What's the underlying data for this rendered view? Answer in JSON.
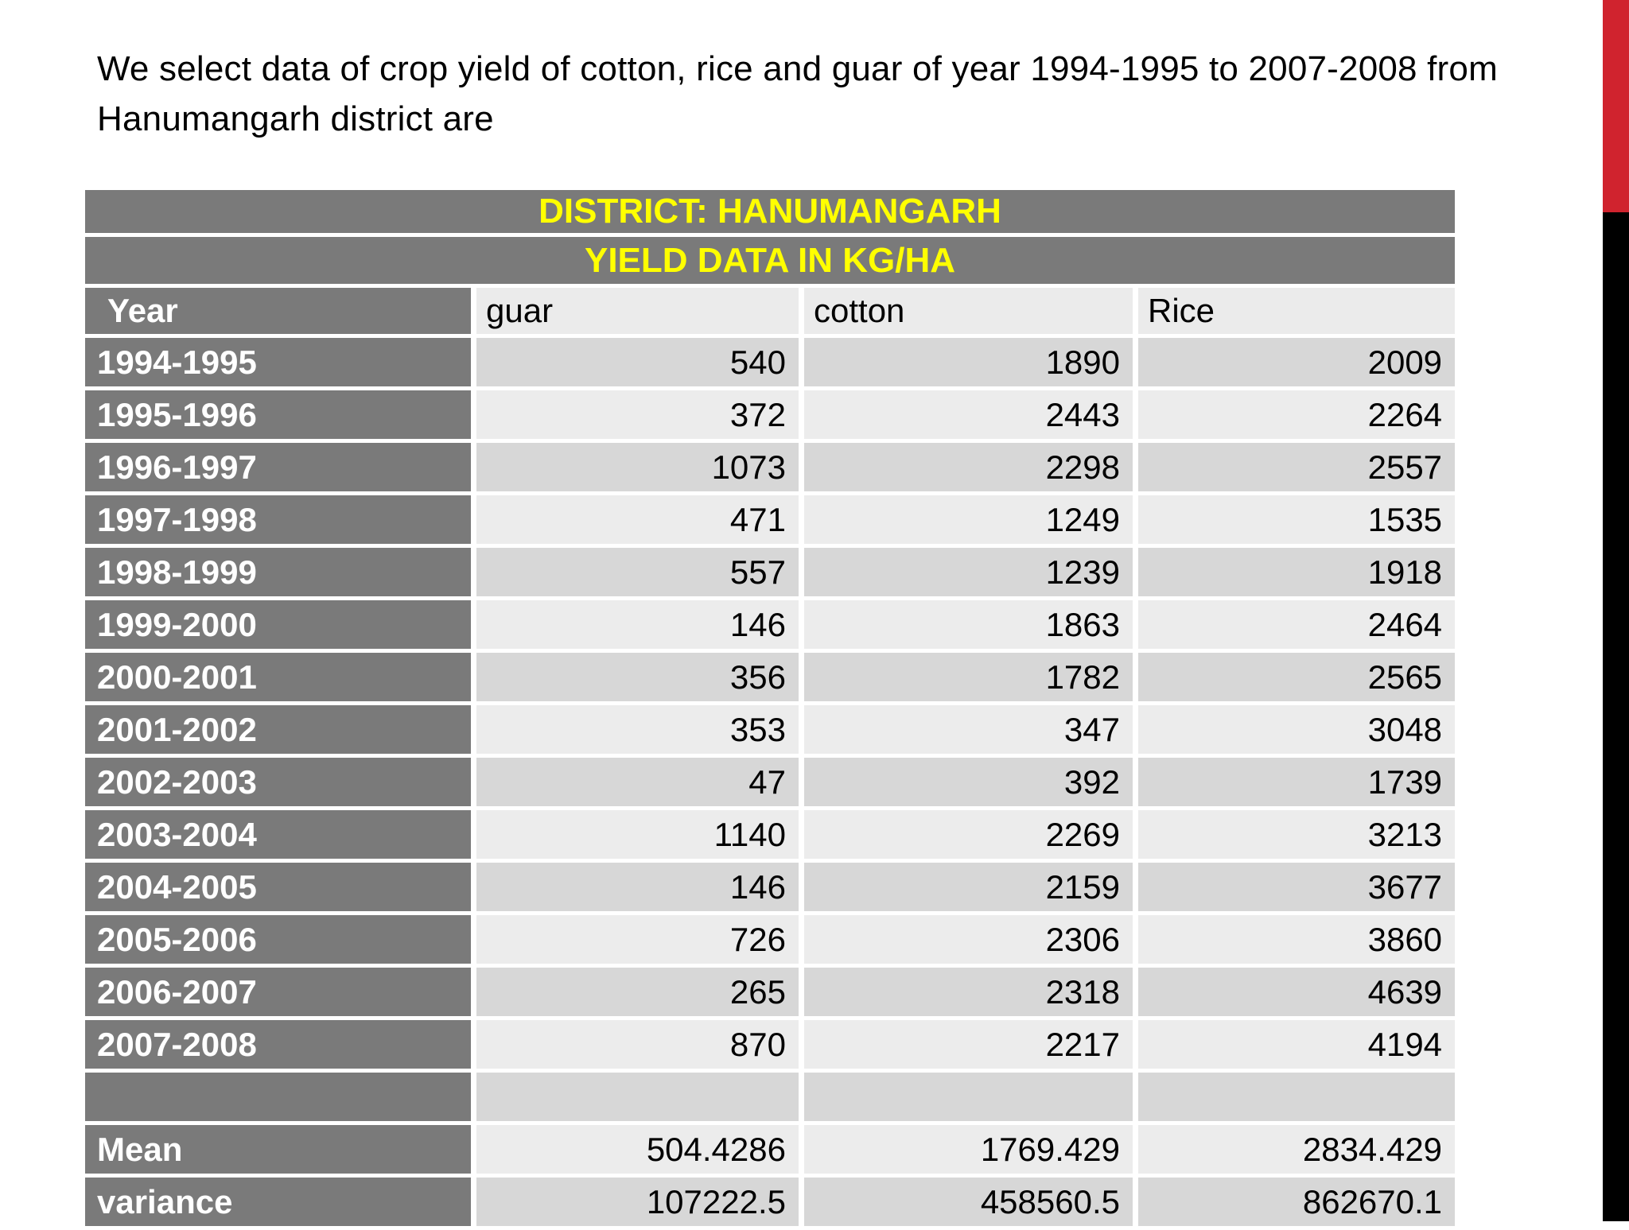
{
  "slide": {
    "title": "We select data of crop yield of cotton, rice and guar of year 1994-1995 to 2007-2008 from Hanumangarh district are"
  },
  "table": {
    "district_banner": "DISTRICT: HANUMANGARH",
    "yield_banner": "YIELD DATA IN KG/HA",
    "columns": [
      "Year",
      "guar",
      "cotton",
      "Rice"
    ],
    "rows": [
      [
        "1994-1995",
        "540",
        "1890",
        "2009"
      ],
      [
        "1995-1996",
        "372",
        "2443",
        "2264"
      ],
      [
        "1996-1997",
        "1073",
        "2298",
        "2557"
      ],
      [
        "1997-1998",
        "471",
        "1249",
        "1535"
      ],
      [
        "1998-1999",
        "557",
        "1239",
        "1918"
      ],
      [
        "1999-2000",
        "146",
        "1863",
        "2464"
      ],
      [
        "2000-2001",
        "356",
        "1782",
        "2565"
      ],
      [
        "2001-2002",
        "353",
        "347",
        "3048"
      ],
      [
        "2002-2003",
        "47",
        "392",
        "1739"
      ],
      [
        "2003-2004",
        "1140",
        "2269",
        "3213"
      ],
      [
        "2004-2005",
        "146",
        "2159",
        "3677"
      ],
      [
        "2005-2006",
        "726",
        "2306",
        "3860"
      ],
      [
        "2006-2007",
        "265",
        "2318",
        "4639"
      ],
      [
        "2007-2008",
        "870",
        "2217",
        "4194"
      ],
      [
        "",
        "",
        "",
        ""
      ],
      [
        "Mean",
        "504.4286",
        "1769.429",
        "2834.429"
      ],
      [
        "variance",
        "107222.5",
        "458560.5",
        "862670.1"
      ]
    ]
  },
  "colors": {
    "banner_background": "#7a7a7a",
    "banner_text": "#ffff00",
    "label_column_background": "#7a7a7a",
    "label_text": "#ffffff",
    "row_dark": "#d7d7d7",
    "row_light": "#ececec",
    "accent_red": "#d0232e",
    "accent_black": "#000000"
  }
}
